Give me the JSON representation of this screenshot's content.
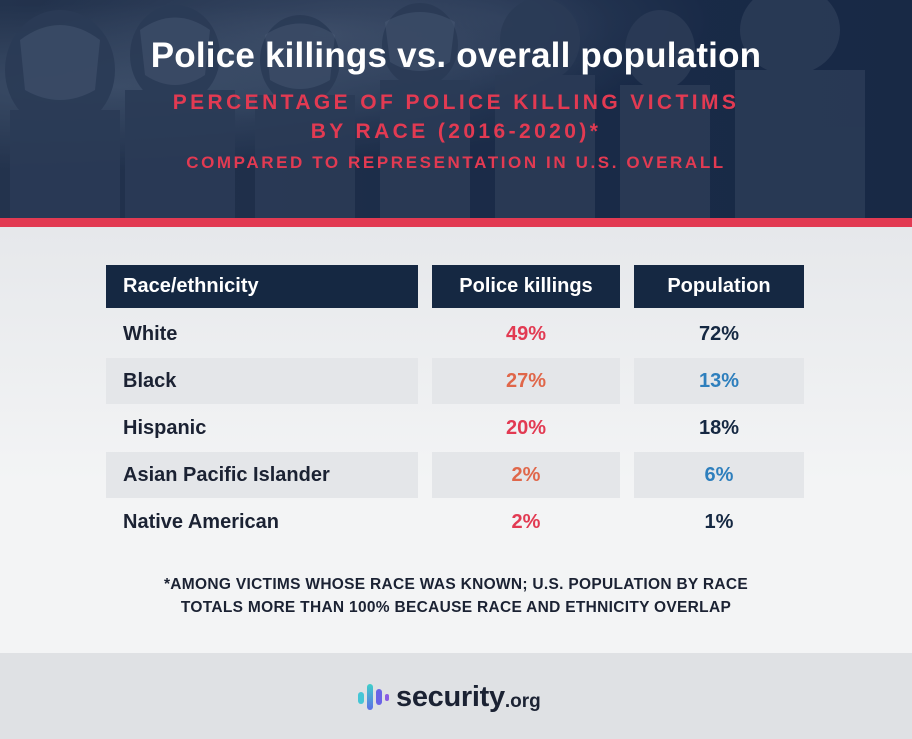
{
  "header": {
    "title": "Police killings vs. overall population",
    "subtitle_line1": "PERCENTAGE OF POLICE KILLING VICTIMS",
    "subtitle_line2": "BY RACE (2016-2020)*",
    "subtitle_line3": "COMPARED TO REPRESENTATION IN U.S. OVERALL"
  },
  "colors": {
    "navy": "#152842",
    "red": "#e23a52",
    "orange": "#e0674a",
    "blue": "#2e7fbd",
    "dark": "#1b2233"
  },
  "chart_data": {
    "type": "table",
    "title": "Police killings vs. overall population",
    "subtitle": "PERCENTAGE OF POLICE KILLING VICTIMS BY RACE (2016-2020)* COMPARED TO REPRESENTATION IN U.S. OVERALL",
    "columns": [
      "Race/ethnicity",
      "Police killings",
      "Population"
    ],
    "rows": [
      {
        "race": "White",
        "police_killings": "49%",
        "population": "72%",
        "pk_value": 49,
        "pop_value": 72
      },
      {
        "race": "Black",
        "police_killings": "27%",
        "population": "13%",
        "pk_value": 27,
        "pop_value": 13
      },
      {
        "race": "Hispanic",
        "police_killings": "20%",
        "population": "18%",
        "pk_value": 20,
        "pop_value": 18
      },
      {
        "race": "Asian Pacific Islander",
        "police_killings": "2%",
        "population": "6%",
        "pk_value": 2,
        "pop_value": 6
      },
      {
        "race": "Native American",
        "police_killings": "2%",
        "population": "1%",
        "pk_value": 2,
        "pop_value": 1
      }
    ]
  },
  "footnote": {
    "line1": "*AMONG VICTIMS WHOSE RACE WAS KNOWN; U.S. POPULATION BY RACE",
    "line2": "TOTALS MORE THAN 100% BECAUSE RACE AND ETHNICITY OVERLAP"
  },
  "logo": {
    "main": "security",
    "tld": ".org",
    "icon": "bar-signal-icon"
  }
}
